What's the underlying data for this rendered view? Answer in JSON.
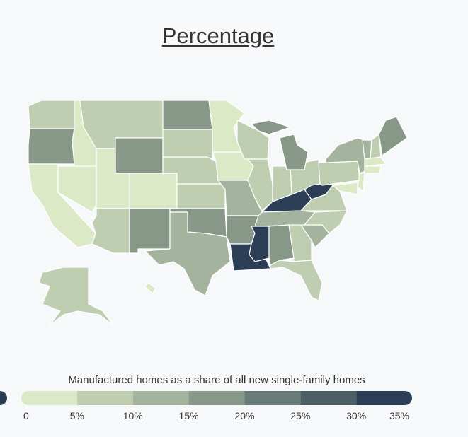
{
  "chart_data": {
    "type": "choropleth",
    "title": "Percentage",
    "legend_title": "Manufactured homes as a share of all new single-family homes",
    "values": [
      7.5,
      17.5,
      2.5,
      2.5,
      2.5,
      7.5,
      17.5,
      2.5,
      2.5,
      7.5,
      17.5,
      17.5,
      7.5,
      7.5,
      7.5,
      17.5,
      12.5,
      2.5,
      2.5,
      12.5,
      17.5,
      32.5,
      7.5,
      7.5,
      7.5,
      7.5,
      17.5,
      32.5,
      12.5,
      32.5,
      17.5,
      7.5,
      7.5,
      12.5,
      7.5,
      7.5,
      32.5,
      7.5,
      12.5,
      12.5,
      7.5,
      17.5,
      2.5,
      2.5,
      2.5,
      2.5,
      7.5,
      2.5
    ],
    "colors": [
      "#dce9c7",
      "#bfcdb1",
      "#a3b39d",
      "#879889",
      "#6a7c77",
      "#4c5f66",
      "#2c3e56"
    ],
    "ticks": [
      0,
      {
        "value": 5,
        "label": "5%"
      },
      {
        "value": 10,
        "label": "10%"
      },
      {
        "value": 15,
        "label": "15%"
      },
      {
        "value": 20,
        "label": "20%"
      },
      {
        "value": 25,
        "label": "25%"
      },
      {
        "value": 30,
        "label": "30%"
      },
      {
        "value": 35,
        "label": "35%"
      }
    ]
  }
}
